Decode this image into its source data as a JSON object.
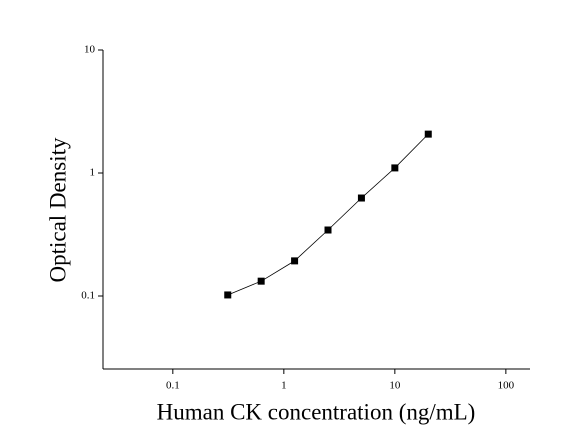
{
  "chart_data": {
    "type": "scatter",
    "x_label": "Human CK concentration (ng/mL)",
    "y_label": "Optical Density",
    "x": [
      0.3125,
      0.625,
      1.25,
      2.5,
      5,
      10,
      20
    ],
    "series": [
      {
        "color": "#000000",
        "values": [
          0.102,
          0.132,
          0.193,
          0.344,
          0.626,
          1.1,
          2.07
        ]
      }
    ],
    "xlim": [
      0.0235,
      165
    ],
    "ylim": [
      0.0255,
      10
    ],
    "xticks": [
      0.1,
      1,
      10,
      100
    ],
    "yticks": [
      0.1,
      1,
      10
    ],
    "xscale": "log",
    "yscale": "log",
    "grid": false
  }
}
